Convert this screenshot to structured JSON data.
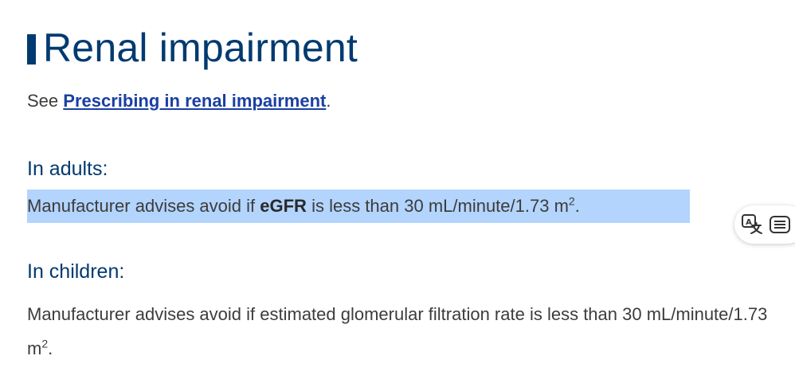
{
  "section": {
    "title": "Renal impairment",
    "see_prefix": "See ",
    "see_link": "Prescribing in renal impairment",
    "see_suffix": "."
  },
  "adults": {
    "heading": "In adults:",
    "text_before": "Manufacturer advises avoid if ",
    "text_bold": "eGFR",
    "text_after": " is less than 30 mL/minute/1.73 m",
    "superscript": "2",
    "text_end": "."
  },
  "children": {
    "heading": "In children:",
    "text": "Manufacturer advises avoid if estimated glomerular filtration rate is less than 30 mL/minute/1.73 m",
    "superscript": "2",
    "text_end": "."
  },
  "toolbar": {
    "icons": [
      "translate-icon",
      "reader-icon"
    ]
  },
  "colors": {
    "heading": "#003a70",
    "link": "#1a3fa3",
    "selection": "#b3d4fc",
    "body_text": "#3c3c3c"
  }
}
